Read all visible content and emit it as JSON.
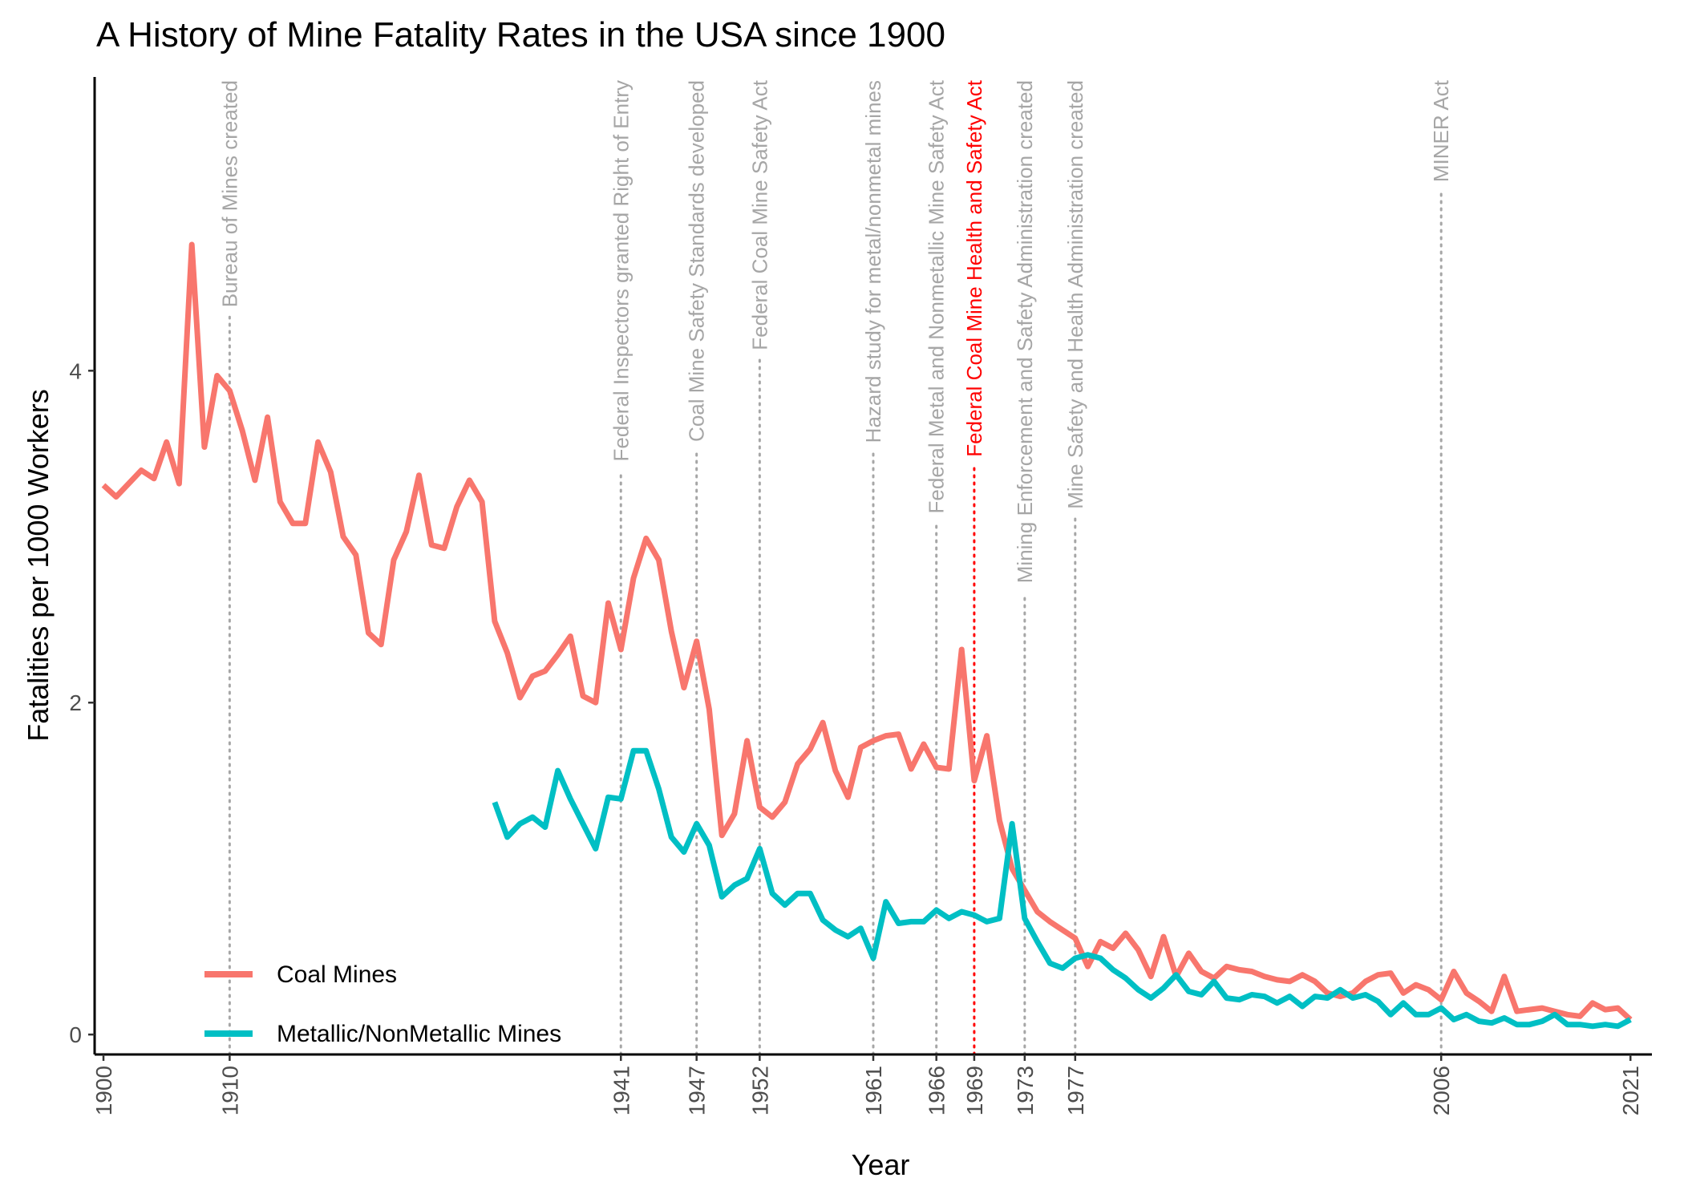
{
  "chart_data": {
    "type": "line",
    "title": "A History of Mine Fatality Rates in the USA since 1900",
    "x_label": "Year",
    "y_label": "Fatalities per 1000 Workers",
    "x": [
      1900,
      1901,
      1902,
      1903,
      1904,
      1905,
      1906,
      1907,
      1908,
      1909,
      1910,
      1911,
      1912,
      1913,
      1914,
      1915,
      1916,
      1917,
      1918,
      1919,
      1920,
      1921,
      1922,
      1923,
      1924,
      1925,
      1926,
      1927,
      1928,
      1929,
      1930,
      1931,
      1932,
      1933,
      1934,
      1935,
      1936,
      1937,
      1938,
      1939,
      1940,
      1941,
      1942,
      1943,
      1944,
      1945,
      1946,
      1947,
      1948,
      1949,
      1950,
      1951,
      1952,
      1953,
      1954,
      1955,
      1956,
      1957,
      1958,
      1959,
      1960,
      1961,
      1962,
      1963,
      1964,
      1965,
      1966,
      1967,
      1968,
      1969,
      1970,
      1971,
      1972,
      1973,
      1974,
      1975,
      1976,
      1977,
      1978,
      1979,
      1980,
      1981,
      1982,
      1983,
      1984,
      1985,
      1986,
      1987,
      1988,
      1989,
      1990,
      1991,
      1992,
      1993,
      1994,
      1995,
      1996,
      1997,
      1998,
      1999,
      2000,
      2001,
      2002,
      2003,
      2004,
      2005,
      2006,
      2007,
      2008,
      2009,
      2010,
      2011,
      2012,
      2013,
      2014,
      2015,
      2016,
      2017,
      2018,
      2019,
      2020,
      2021
    ],
    "series": [
      {
        "name": "Coal Mines",
        "color": "#F8766D",
        "values": [
          3.31,
          3.24,
          3.32,
          3.4,
          3.35,
          3.57,
          3.32,
          4.76,
          3.54,
          3.97,
          3.88,
          3.64,
          3.34,
          3.72,
          3.21,
          3.08,
          3.08,
          3.57,
          3.39,
          3.0,
          2.89,
          2.42,
          2.35,
          2.86,
          3.03,
          3.37,
          2.95,
          2.93,
          3.18,
          3.34,
          3.21,
          2.49,
          2.3,
          2.03,
          2.16,
          2.19,
          2.29,
          2.4,
          2.04,
          2.0,
          2.6,
          2.32,
          2.75,
          2.99,
          2.86,
          2.43,
          2.09,
          2.37,
          1.96,
          1.2,
          1.33,
          1.77,
          1.37,
          1.31,
          1.4,
          1.63,
          1.72,
          1.88,
          1.59,
          1.43,
          1.73,
          1.77,
          1.8,
          1.81,
          1.6,
          1.75,
          1.61,
          1.6,
          2.32,
          1.53,
          1.8,
          1.29,
          1.0,
          0.87,
          0.74,
          0.68,
          0.63,
          0.58,
          0.41,
          0.56,
          0.52,
          0.61,
          0.51,
          0.35,
          0.59,
          0.35,
          0.49,
          0.38,
          0.34,
          0.41,
          0.39,
          0.38,
          0.35,
          0.33,
          0.32,
          0.36,
          0.32,
          0.25,
          0.23,
          0.25,
          0.32,
          0.36,
          0.37,
          0.25,
          0.3,
          0.27,
          0.21,
          0.38,
          0.25,
          0.2,
          0.14,
          0.35,
          0.14,
          0.15,
          0.16,
          0.14,
          0.12,
          0.11,
          0.19,
          0.15,
          0.16,
          0.09
        ]
      },
      {
        "name": "Metallic/NonMetallic Mines",
        "color": "#00BFC4",
        "values": [
          null,
          null,
          null,
          null,
          null,
          null,
          null,
          null,
          null,
          null,
          null,
          null,
          null,
          null,
          null,
          null,
          null,
          null,
          null,
          null,
          null,
          null,
          null,
          null,
          null,
          null,
          null,
          null,
          null,
          null,
          null,
          1.4,
          1.19,
          1.27,
          1.31,
          1.25,
          1.59,
          1.42,
          1.27,
          1.12,
          1.43,
          1.42,
          1.71,
          1.71,
          1.48,
          1.19,
          1.1,
          1.27,
          1.14,
          0.83,
          0.9,
          0.94,
          1.12,
          0.85,
          0.78,
          0.85,
          0.85,
          0.69,
          0.63,
          0.59,
          0.64,
          0.46,
          0.8,
          0.67,
          0.68,
          0.68,
          0.75,
          0.7,
          0.74,
          0.72,
          0.68,
          0.7,
          1.27,
          0.7,
          0.56,
          0.43,
          0.4,
          0.46,
          0.48,
          0.46,
          0.39,
          0.34,
          0.27,
          0.22,
          0.28,
          0.36,
          0.26,
          0.24,
          0.32,
          0.22,
          0.21,
          0.24,
          0.23,
          0.19,
          0.23,
          0.17,
          0.23,
          0.22,
          0.27,
          0.22,
          0.24,
          0.2,
          0.12,
          0.19,
          0.12,
          0.12,
          0.16,
          0.09,
          0.12,
          0.08,
          0.07,
          0.1,
          0.06,
          0.06,
          0.08,
          0.12,
          0.06,
          0.06,
          0.05,
          0.06,
          0.05,
          0.09
        ]
      }
    ],
    "xlim": [
      1899.3,
      2022.7
    ],
    "ylim": [
      -0.12,
      5.77
    ],
    "xticks": [
      1900,
      1910,
      1941,
      1947,
      1952,
      1961,
      1966,
      1969,
      1973,
      1977,
      2006,
      2021
    ],
    "yticks": [
      0,
      2,
      4
    ],
    "legend": "bottom-left",
    "grid": false,
    "annotations": [
      {
        "x": 1910,
        "label": "Bureau of Mines created",
        "color": "#a6a6a6"
      },
      {
        "x": 1941,
        "label": "Federal Inspectors granted Right of Entry",
        "color": "#a6a6a6"
      },
      {
        "x": 1947,
        "label": "Coal Mine Safety Standards developed",
        "color": "#a6a6a6"
      },
      {
        "x": 1952,
        "label": "Federal Coal Mine Safety Act",
        "color": "#a6a6a6"
      },
      {
        "x": 1961,
        "label": "Hazard study for metal/nonmetal mines",
        "color": "#a6a6a6"
      },
      {
        "x": 1966,
        "label": "Federal Metal and Nonmetallic Mine Safety Act",
        "color": "#a6a6a6"
      },
      {
        "x": 1969,
        "label": "Federal Coal Mine Health and Safety Act",
        "color": "#ff0000"
      },
      {
        "x": 1973,
        "label": "Mining Enforcement and Safety Administration created",
        "color": "#a6a6a6"
      },
      {
        "x": 1977,
        "label": "Mine Safety and Health Administration created",
        "color": "#a6a6a6"
      },
      {
        "x": 2006,
        "label": "MINER Act",
        "color": "#a6a6a6"
      }
    ]
  }
}
